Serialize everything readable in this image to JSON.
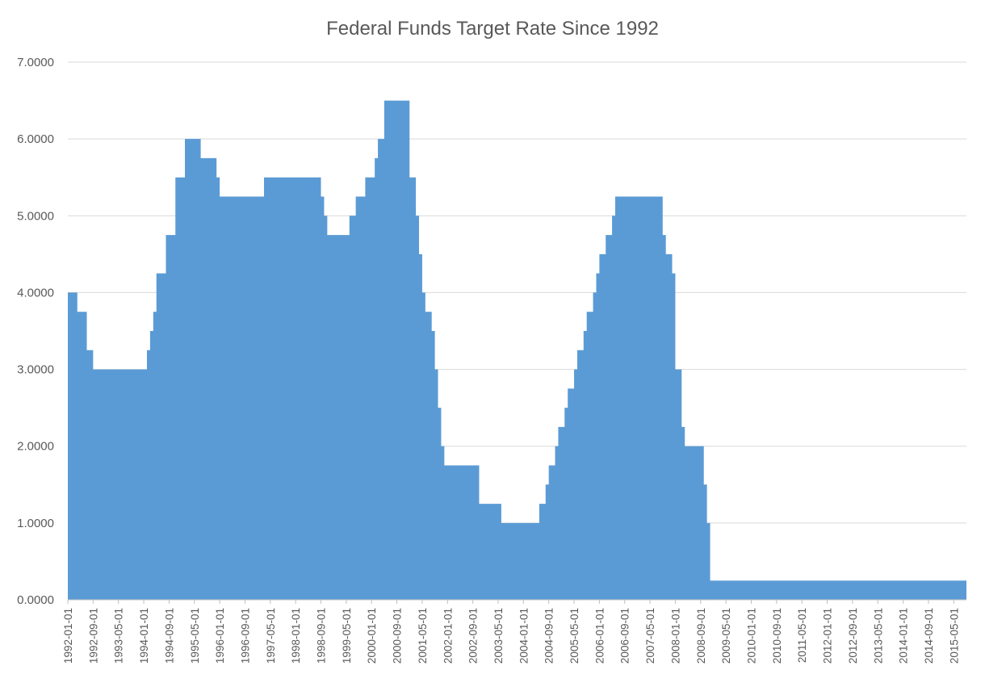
{
  "chart_data": {
    "type": "area",
    "title": "Federal Funds Target Rate Since 1992",
    "xlabel": "",
    "ylabel": "",
    "ylim": [
      0,
      7
    ],
    "yticks": [
      "0.0000",
      "1.0000",
      "2.0000",
      "3.0000",
      "4.0000",
      "5.0000",
      "6.0000",
      "7.0000"
    ],
    "x_start": "1992-01-01",
    "x_end": "2015-09-01",
    "xtick_labels": [
      "1992-01-01",
      "1992-09-01",
      "1993-05-01",
      "1994-01-01",
      "1994-09-01",
      "1995-05-01",
      "1996-01-01",
      "1996-09-01",
      "1997-05-01",
      "1998-01-01",
      "1998-09-01",
      "1999-05-01",
      "2000-01-01",
      "2000-09-01",
      "2001-05-01",
      "2002-01-01",
      "2002-09-01",
      "2003-05-01",
      "2004-01-01",
      "2004-09-01",
      "2005-05-01",
      "2006-01-01",
      "2006-09-01",
      "2007-05-01",
      "2008-01-01",
      "2008-09-01",
      "2009-05-01",
      "2010-01-01",
      "2010-09-01",
      "2011-05-01",
      "2012-01-01",
      "2012-09-01",
      "2013-05-01",
      "2014-01-01",
      "2014-09-01",
      "2015-05-01"
    ],
    "grid": true,
    "legend": "none",
    "series_color": "#5b9bd5",
    "points": [
      [
        "1992-01-01",
        4.0
      ],
      [
        "1992-04-01",
        3.75
      ],
      [
        "1992-07-01",
        3.25
      ],
      [
        "1992-09-01",
        3.0
      ],
      [
        "1994-02-01",
        3.25
      ],
      [
        "1994-03-01",
        3.5
      ],
      [
        "1994-04-01",
        3.75
      ],
      [
        "1994-05-01",
        4.25
      ],
      [
        "1994-08-01",
        4.75
      ],
      [
        "1994-11-01",
        5.5
      ],
      [
        "1995-02-01",
        6.0
      ],
      [
        "1995-07-01",
        5.75
      ],
      [
        "1995-12-01",
        5.5
      ],
      [
        "1996-01-01",
        5.25
      ],
      [
        "1997-03-01",
        5.5
      ],
      [
        "1998-09-01",
        5.25
      ],
      [
        "1998-10-01",
        5.0
      ],
      [
        "1998-11-01",
        4.75
      ],
      [
        "1999-06-01",
        5.0
      ],
      [
        "1999-08-01",
        5.25
      ],
      [
        "1999-11-01",
        5.5
      ],
      [
        "2000-02-01",
        5.75
      ],
      [
        "2000-03-01",
        6.0
      ],
      [
        "2000-05-01",
        6.5
      ],
      [
        "2001-01-01",
        5.5
      ],
      [
        "2001-02-01",
        5.5
      ],
      [
        "2001-03-01",
        5.0
      ],
      [
        "2001-04-01",
        4.5
      ],
      [
        "2001-05-01",
        4.0
      ],
      [
        "2001-06-01",
        3.75
      ],
      [
        "2001-08-01",
        3.5
      ],
      [
        "2001-09-01",
        3.0
      ],
      [
        "2001-10-01",
        2.5
      ],
      [
        "2001-11-01",
        2.0
      ],
      [
        "2001-12-01",
        1.75
      ],
      [
        "2002-11-01",
        1.25
      ],
      [
        "2003-06-01",
        1.0
      ],
      [
        "2004-06-01",
        1.25
      ],
      [
        "2004-08-01",
        1.5
      ],
      [
        "2004-09-01",
        1.75
      ],
      [
        "2004-11-01",
        2.0
      ],
      [
        "2004-12-01",
        2.25
      ],
      [
        "2005-02-01",
        2.5
      ],
      [
        "2005-03-01",
        2.75
      ],
      [
        "2005-05-01",
        3.0
      ],
      [
        "2005-06-01",
        3.25
      ],
      [
        "2005-08-01",
        3.5
      ],
      [
        "2005-09-01",
        3.75
      ],
      [
        "2005-11-01",
        4.0
      ],
      [
        "2005-12-01",
        4.25
      ],
      [
        "2006-01-01",
        4.5
      ],
      [
        "2006-03-01",
        4.75
      ],
      [
        "2006-05-01",
        5.0
      ],
      [
        "2006-06-01",
        5.25
      ],
      [
        "2007-09-01",
        4.75
      ],
      [
        "2007-10-01",
        4.5
      ],
      [
        "2007-12-01",
        4.25
      ],
      [
        "2008-01-01",
        3.0
      ],
      [
        "2008-03-01",
        2.25
      ],
      [
        "2008-04-01",
        2.0
      ],
      [
        "2008-10-01",
        1.5
      ],
      [
        "2008-11-01",
        1.0
      ],
      [
        "2008-12-01",
        0.25
      ],
      [
        "2015-09-01",
        0.25
      ]
    ]
  }
}
